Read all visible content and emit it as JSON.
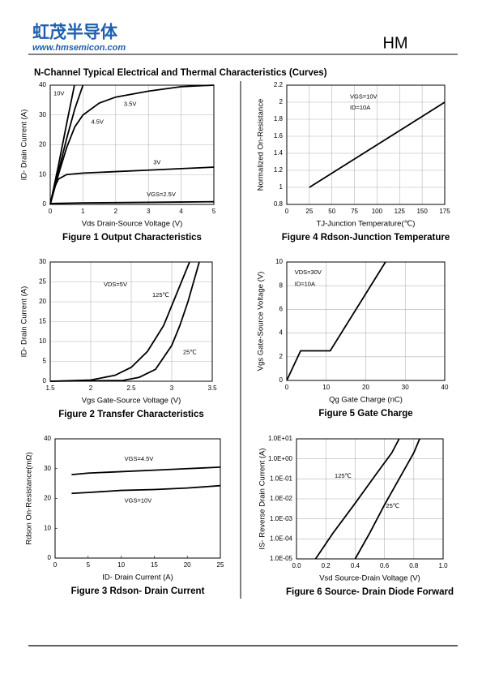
{
  "header": {
    "logo_cn": "虹茂半导体",
    "website": "www.hmsemicon.com",
    "brand": "HM"
  },
  "section_title": "N-Channel Typical Electrical and Thermal Characteristics (Curves)",
  "chart_data": [
    {
      "type": "line",
      "title": "Figure 1 Output Characteristics",
      "x_label": "Vds Drain-Source Voltage (V)",
      "y_label": "ID- Drain Current (A)",
      "xlim": [
        0,
        5
      ],
      "xticks": [
        0,
        1,
        2,
        3,
        4,
        5
      ],
      "ylim": [
        0,
        40
      ],
      "yticks": [
        0,
        10,
        20,
        30,
        40
      ],
      "grid": true,
      "log_y": false,
      "series": [
        {
          "name": "10V",
          "color": "#000000",
          "x": [
            0,
            0.25,
            0.5,
            0.74
          ],
          "values": [
            0,
            13,
            27,
            40
          ]
        },
        {
          "name": "4.5V",
          "color": "#000000",
          "x": [
            0,
            0.25,
            0.5,
            0.75,
            1.0
          ],
          "values": [
            0,
            11,
            22,
            32,
            40
          ]
        },
        {
          "name": "3.5V",
          "color": "#000000",
          "x": [
            0,
            0.25,
            0.5,
            0.75,
            1,
            1.5,
            2,
            3,
            4,
            5
          ],
          "values": [
            0,
            10,
            19,
            26,
            30,
            34,
            36,
            38,
            39.5,
            40
          ]
        },
        {
          "name": "3V",
          "color": "#000000",
          "x": [
            0,
            0.1,
            0.25,
            0.5,
            1,
            2,
            3,
            4,
            5
          ],
          "values": [
            0,
            5,
            8.5,
            10,
            10.5,
            11,
            11.5,
            12,
            12.5
          ]
        },
        {
          "name": "VGS=2.5V",
          "color": "#000000",
          "x": [
            0,
            1,
            2,
            3,
            4,
            5
          ],
          "values": [
            0.3,
            0.5,
            0.6,
            0.7,
            0.8,
            0.9
          ]
        }
      ],
      "annotations": []
    },
    {
      "type": "line",
      "title": "Figure 2 Transfer Characteristics",
      "x_label": "Vgs Gate-Source Voltage (V)",
      "y_label": "ID- Drain Current (A)",
      "xlim": [
        1.5,
        3.5
      ],
      "xticks": [
        1.5,
        2,
        2.5,
        3,
        3.5
      ],
      "ylim": [
        0,
        30
      ],
      "yticks": [
        0,
        5,
        10,
        15,
        20,
        25,
        30
      ],
      "grid": true,
      "log_y": false,
      "series": [
        {
          "name": "125℃",
          "color": "#000000",
          "x": [
            1.5,
            2.0,
            2.3,
            2.5,
            2.7,
            2.9,
            3.0,
            3.1,
            3.22
          ],
          "values": [
            0,
            0.3,
            1.5,
            3.5,
            7.5,
            14,
            19,
            24,
            30
          ]
        },
        {
          "name": "25℃",
          "color": "#000000",
          "x": [
            1.5,
            2.4,
            2.6,
            2.8,
            3.0,
            3.1,
            3.2,
            3.34
          ],
          "values": [
            0,
            0.2,
            1,
            3,
            9,
            14,
            20,
            30
          ]
        }
      ],
      "annotations": [
        "VDS=5V"
      ]
    },
    {
      "type": "line",
      "title": "Figure 3 Rdson- Drain Current",
      "x_label": "ID- Drain Current (A)",
      "y_label": "Rdson On-Resistance(mΩ)",
      "xlim": [
        0,
        25
      ],
      "xticks": [
        0,
        5,
        10,
        15,
        20,
        25
      ],
      "ylim": [
        0,
        40
      ],
      "yticks": [
        0,
        10,
        20,
        30,
        40
      ],
      "grid": false,
      "log_y": false,
      "series": [
        {
          "name": "VGS=4.5V",
          "color": "#000000",
          "x": [
            2.5,
            5,
            10,
            15,
            20,
            25
          ],
          "values": [
            28,
            28.5,
            29,
            29.5,
            30,
            30.5
          ]
        },
        {
          "name": "VGS=10V",
          "color": "#000000",
          "x": [
            2.5,
            5,
            10,
            15,
            20,
            25
          ],
          "values": [
            21.7,
            22,
            22.7,
            23,
            23.5,
            24.3
          ]
        }
      ],
      "annotations": []
    },
    {
      "type": "line",
      "title": "Figure 4 Rdson-Junction Temperature",
      "x_label": "TJ-Junction Temperature(℃)",
      "y_label": "Normalized On-Resistance",
      "xlim": [
        0,
        175
      ],
      "xticks": [
        0,
        25,
        50,
        75,
        100,
        125,
        150,
        175
      ],
      "ylim": [
        0.8,
        2.2
      ],
      "yticks": [
        0.8,
        1,
        1.2,
        1.4,
        1.6,
        1.8,
        2,
        2.2
      ],
      "grid": true,
      "log_y": false,
      "series": [
        {
          "name": null,
          "color": "#000000",
          "x": [
            25,
            175
          ],
          "values": [
            1.0,
            2.0
          ]
        }
      ],
      "annotations": [
        "VGS=10V",
        "ID=10A"
      ]
    },
    {
      "type": "line",
      "title": "Figure 5 Gate Charge",
      "x_label": "Qg Gate Charge (nC)",
      "y_label": "Vgs Gate-Source Voltage (V)",
      "xlim": [
        0,
        40
      ],
      "xticks": [
        0,
        10,
        20,
        30,
        40
      ],
      "ylim": [
        0,
        10
      ],
      "yticks": [
        0,
        2,
        4,
        6,
        8,
        10
      ],
      "grid": true,
      "log_y": false,
      "series": [
        {
          "name": null,
          "color": "#000000",
          "x": [
            0,
            3.5,
            11,
            25
          ],
          "values": [
            0,
            2.5,
            2.5,
            10
          ]
        }
      ],
      "annotations": [
        "VDS=30V",
        "ID=10A"
      ]
    },
    {
      "type": "line",
      "title": "Figure 6 Source- Drain Diode Forward",
      "x_label": "Vsd Source-Drain Voltage (V)",
      "y_label": "IS- Reverse Drain Current (A)",
      "xlim": [
        0,
        1
      ],
      "xticks": [
        {
          "value": 0,
          "label": "0.0"
        },
        0.2,
        0.4,
        0.6,
        0.8,
        {
          "value": 1,
          "label": "1.0"
        }
      ],
      "ylim": [
        1e-05,
        10
      ],
      "yticks": [
        {
          "value": 10,
          "label": "1.0E+01"
        },
        {
          "value": 1,
          "label": "1.0E+00"
        },
        {
          "value": 0.1,
          "label": "1.0E-01"
        },
        {
          "value": 0.01,
          "label": "1.0E-02"
        },
        {
          "value": 0.001,
          "label": "1.0E-03"
        },
        {
          "value": 0.0001,
          "label": "1.0E-04"
        },
        {
          "value": 1e-05,
          "label": "1.0E-05"
        }
      ],
      "grid": true,
      "log_y": true,
      "series": [
        {
          "name": "125℃",
          "color": "#000000",
          "x": [
            0.13,
            0.25,
            0.4,
            0.55,
            0.65,
            0.7
          ],
          "values": [
            1e-05,
            0.0002,
            0.006,
            0.2,
            2,
            10
          ]
        },
        {
          "name": "25℃",
          "color": "#000000",
          "x": [
            0.4,
            0.5,
            0.6,
            0.7,
            0.8,
            0.84
          ],
          "values": [
            1e-05,
            0.0002,
            0.005,
            0.1,
            2,
            10
          ]
        }
      ],
      "annotations": []
    }
  ]
}
